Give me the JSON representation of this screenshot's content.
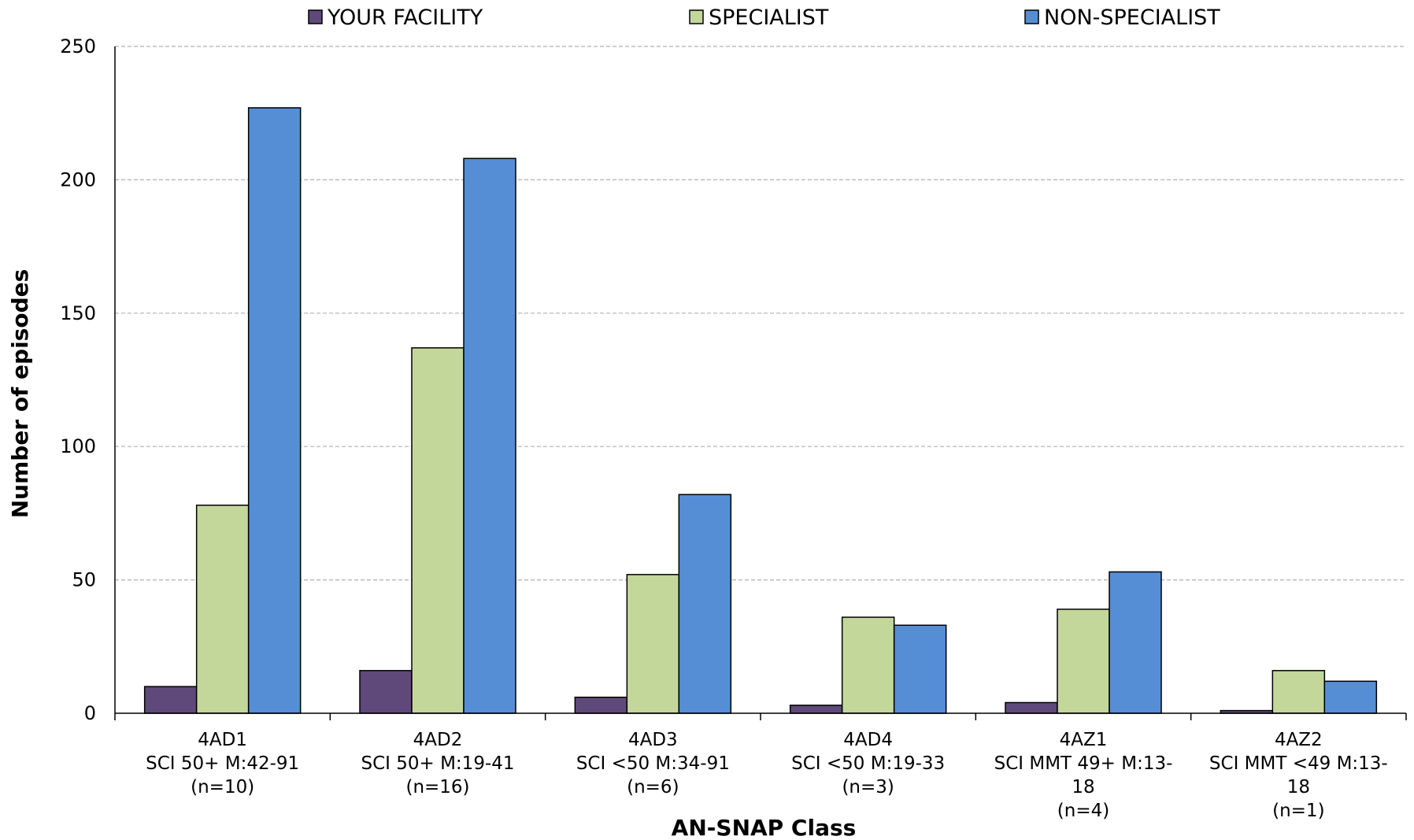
{
  "chart_data": {
    "type": "bar",
    "xlabel": "AN-SNAP Class",
    "ylabel": "Number of episodes",
    "ylim": [
      0,
      250
    ],
    "yticks": [
      0,
      50,
      100,
      150,
      200,
      250
    ],
    "grid": true,
    "legend_position": "top",
    "categories": [
      {
        "lines": [
          "4AD1",
          "SCI 50+ M:42-91",
          "(n=10)"
        ]
      },
      {
        "lines": [
          "4AD2",
          "SCI 50+ M:19-41",
          "(n=16)"
        ]
      },
      {
        "lines": [
          "4AD3",
          "SCI <50 M:34-91",
          "(n=6)"
        ]
      },
      {
        "lines": [
          "4AD4",
          "SCI <50 M:19-33",
          "(n=3)"
        ]
      },
      {
        "lines": [
          "4AZ1",
          "SCI MMT 49+ M:13-",
          "18",
          "(n=4)"
        ]
      },
      {
        "lines": [
          "4AZ2",
          "SCI MMT <49 M:13-",
          "18",
          "(n=1)"
        ]
      }
    ],
    "series": [
      {
        "name": "YOUR FACILITY",
        "color": "#5F497A",
        "values": [
          10,
          16,
          6,
          3,
          4,
          1
        ]
      },
      {
        "name": "SPECIALIST",
        "color": "#C4D79B",
        "values": [
          78,
          137,
          52,
          36,
          39,
          16
        ]
      },
      {
        "name": "NON-SPECIALIST",
        "color": "#558ED5",
        "values": [
          227,
          208,
          82,
          33,
          53,
          12
        ]
      }
    ]
  }
}
